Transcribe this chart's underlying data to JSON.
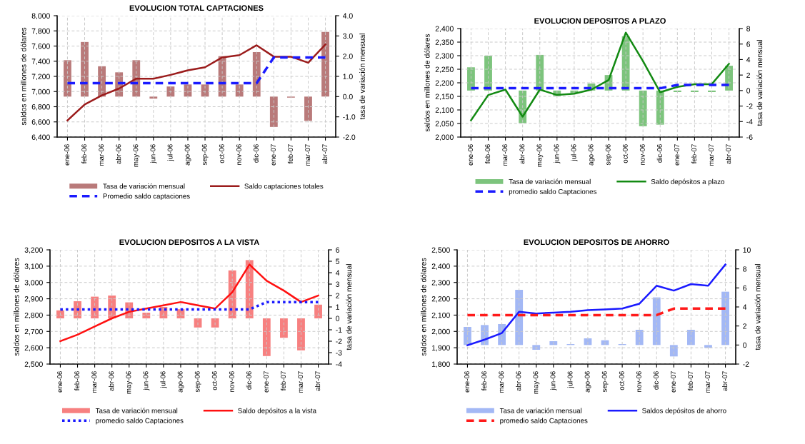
{
  "chart_data": [
    {
      "type": "bar",
      "title": "EVOLUCION TOTAL CAPTACIONES",
      "ylabel": "saldos en millones de dólares",
      "y2label": "tasa de variación mensual",
      "categories": [
        "ene-06",
        "feb-06",
        "mar-06",
        "abr-06",
        "may-06",
        "jun-06",
        "jul-06",
        "ago-06",
        "sep-06",
        "oct-06",
        "nov-06",
        "dic-06",
        "ene-07",
        "feb-07",
        "mar-07",
        "abr-07"
      ],
      "series": [
        {
          "name": "Tasa de variación mensual",
          "axis": "y2",
          "color": "#b97a7a",
          "values": [
            1.8,
            2.7,
            1.5,
            1.2,
            1.8,
            -0.1,
            0.5,
            0.6,
            0.6,
            2.0,
            0.6,
            2.2,
            -1.5,
            -0.05,
            -1.2,
            3.2
          ]
        },
        {
          "name": "Saldo captaciones totales",
          "type": "line",
          "color": "#9b1c1c",
          "line_style": "solid",
          "values": [
            6620,
            6830,
            6950,
            7040,
            7170,
            7170,
            7220,
            7280,
            7320,
            7450,
            7480,
            7610,
            7460,
            7460,
            7380,
            7620
          ]
        },
        {
          "name": "Promedio saldo captaciones",
          "type": "line",
          "color": "#1a1aff",
          "line_style": "dashed",
          "values": [
            7110,
            7110,
            7110,
            7110,
            7110,
            7110,
            7110,
            7110,
            7110,
            7110,
            7110,
            7110,
            7450,
            7450,
            7450,
            7450
          ]
        }
      ],
      "ylim": [
        6400,
        8000
      ],
      "yticks": [
        {
          "value": 6400,
          "label": "6,400"
        },
        {
          "value": 6600,
          "label": "6,600"
        },
        {
          "value": 6800,
          "label": "6,800"
        },
        {
          "value": 7000,
          "label": "7,000"
        },
        {
          "value": 7200,
          "label": "7,200"
        },
        {
          "value": 7400,
          "label": "7,400"
        },
        {
          "value": 7600,
          "label": "7,600"
        },
        {
          "value": 7800,
          "label": "7,800"
        },
        {
          "value": 8000,
          "label": "8,000"
        }
      ],
      "y2lim": [
        -2,
        4
      ],
      "y2ticks": [
        {
          "value": -2,
          "label": "-2.0"
        },
        {
          "value": -1,
          "label": "-1.0"
        },
        {
          "value": 0,
          "label": "0.0"
        },
        {
          "value": 1,
          "label": "1.0"
        },
        {
          "value": 2,
          "label": "2.0"
        },
        {
          "value": 3,
          "label": "3.0"
        },
        {
          "value": 4,
          "label": "4.0"
        }
      ],
      "grid": true,
      "legend": "bottom"
    },
    {
      "type": "bar",
      "title": "EVOLUCION DEPOSITOS A PLAZO",
      "ylabel": "saldos en millones de dólares",
      "y2label": "tasa de variación mensual",
      "categories": [
        "ene-06",
        "feb-06",
        "mar-06",
        "abr-06",
        "may-06",
        "jun-06",
        "jul-06",
        "ago-06",
        "sep-06",
        "oct-06",
        "nov-06",
        "dic-06",
        "ene-07",
        "feb-07",
        "mar-07",
        "abr-07"
      ],
      "series": [
        {
          "name": "Tasa de variación mensual",
          "axis": "y2",
          "color": "#7dc47d",
          "values": [
            3.0,
            4.5,
            null,
            -4.2,
            4.6,
            -0.7,
            -0.3,
            0.9,
            2.0,
            7.0,
            -4.6,
            -4.4,
            -0.2,
            -0.2,
            -0.2,
            3.2
          ]
        },
        {
          "name": "Saldo depósitos a plazo",
          "type": "line",
          "color": "#138a13",
          "line_style": "solid",
          "values": [
            2062,
            2155,
            2175,
            2075,
            2175,
            2155,
            2160,
            2175,
            2210,
            2385,
            2280,
            2165,
            2185,
            2195,
            2195,
            2270
          ]
        },
        {
          "name": "promedio saldo Captaciones",
          "type": "line",
          "color": "#1a1aff",
          "line_style": "dashed",
          "values": [
            2180,
            2180,
            2180,
            2180,
            2180,
            2180,
            2180,
            2180,
            2180,
            2180,
            2180,
            2180,
            2192,
            2192,
            2192,
            2192
          ]
        }
      ],
      "ylim": [
        2000,
        2400
      ],
      "yticks": [
        {
          "value": 2000,
          "label": "2,000"
        },
        {
          "value": 2050,
          "label": "2,050"
        },
        {
          "value": 2100,
          "label": "2,100"
        },
        {
          "value": 2150,
          "label": "2,150"
        },
        {
          "value": 2200,
          "label": "2,200"
        },
        {
          "value": 2250,
          "label": "2,250"
        },
        {
          "value": 2300,
          "label": "2,300"
        },
        {
          "value": 2350,
          "label": "2,350"
        },
        {
          "value": 2400,
          "label": "2,400"
        }
      ],
      "y2lim": [
        -6,
        8
      ],
      "y2ticks": [
        -6,
        -4,
        -2,
        0,
        2,
        4,
        6,
        8
      ],
      "grid": true,
      "legend": "bottom"
    },
    {
      "type": "bar",
      "title": "EVOLUCION DEPOSITOS A LA VISTA",
      "ylabel": "saldos en millones de dólares",
      "y2label": "tasa de variación mensual",
      "categories": [
        "ene-06",
        "feb-06",
        "mar-06",
        "abr-06",
        "may-06",
        "jun-06",
        "jul-06",
        "ago-06",
        "sep-06",
        "oct-06",
        "nov-06",
        "dic-06",
        "ene-07",
        "feb-07",
        "mar-07",
        "abr-07"
      ],
      "series": [
        {
          "name": "Tasa de variación mensual",
          "axis": "y2",
          "color": "#f78080",
          "values": [
            0.7,
            1.5,
            1.9,
            2.0,
            1.4,
            0.5,
            1.0,
            0.8,
            -0.8,
            -0.8,
            4.2,
            5.1,
            -3.3,
            -1.7,
            -2.8,
            1.2
          ]
        },
        {
          "name": "Saldo depósitos a la vista",
          "type": "line",
          "color": "#ff1010",
          "line_style": "solid",
          "values": [
            2640,
            2680,
            2730,
            2780,
            2820,
            2840,
            2860,
            2880,
            2860,
            2840,
            2940,
            3110,
            3010,
            2950,
            2880,
            2920
          ]
        },
        {
          "name": "promedio saldo Captaciones",
          "type": "line",
          "color": "#1a1aff",
          "line_style": "dotted",
          "values": [
            2835,
            2835,
            2835,
            2835,
            2835,
            2835,
            2835,
            2835,
            2835,
            2835,
            2835,
            2835,
            2880,
            2880,
            2880,
            2880
          ]
        }
      ],
      "ylim": [
        2500,
        3200
      ],
      "yticks": [
        {
          "value": 2500,
          "label": "2,500"
        },
        {
          "value": 2600,
          "label": "2,600"
        },
        {
          "value": 2700,
          "label": "2,700"
        },
        {
          "value": 2800,
          "label": "2,800"
        },
        {
          "value": 2900,
          "label": "2,900"
        },
        {
          "value": 3000,
          "label": "3,000"
        },
        {
          "value": 3100,
          "label": "3,100"
        },
        {
          "value": 3200,
          "label": "3,200"
        }
      ],
      "y2lim": [
        -4,
        6
      ],
      "y2ticks": [
        -4,
        -3,
        -2,
        -1,
        0,
        1,
        2,
        3,
        4,
        5,
        6
      ],
      "grid": true,
      "legend": "bottom"
    },
    {
      "type": "bar",
      "title": "EVOLUCION DEPOSITOS DE AHORRO",
      "ylabel": "saldos en millones de dólares",
      "y2label": "tasa de variación mensual",
      "categories": [
        "ene-06",
        "feb-06",
        "mar-06",
        "abr-06",
        "may-06",
        "jun-06",
        "jul-06",
        "ago-06",
        "sep-06",
        "oct-06",
        "nov-06",
        "dic-06",
        "ene-07",
        "feb-07",
        "mar-07",
        "abr-07"
      ],
      "series": [
        {
          "name": "Tasa de variación mensual",
          "axis": "y2",
          "color": "#a3b8f5",
          "values": [
            1.9,
            2.1,
            2.2,
            5.8,
            -0.5,
            0.4,
            0.1,
            0.7,
            0.5,
            0.1,
            1.6,
            5.0,
            -1.2,
            1.6,
            -0.3,
            5.6
          ]
        },
        {
          "name": "Saldos depósitos de ahorro",
          "type": "line",
          "color": "#1a1aff",
          "line_style": "solid",
          "values": [
            1915,
            1950,
            1990,
            2120,
            2110,
            2115,
            2120,
            2130,
            2135,
            2140,
            2170,
            2280,
            2250,
            2290,
            2280,
            2410
          ]
        },
        {
          "name": "promedio saldo Captaciones",
          "type": "line",
          "color": "#ff1a1a",
          "line_style": "dashed",
          "values": [
            2100,
            2100,
            2100,
            2100,
            2100,
            2100,
            2100,
            2100,
            2100,
            2100,
            2100,
            2100,
            2140,
            2140,
            2140,
            2140
          ]
        }
      ],
      "ylim": [
        1800,
        2500
      ],
      "yticks": [
        {
          "value": 1800,
          "label": "1,800"
        },
        {
          "value": 1900,
          "label": "1,900"
        },
        {
          "value": 2000,
          "label": "2,000"
        },
        {
          "value": 2100,
          "label": "2,100"
        },
        {
          "value": 2200,
          "label": "2,200"
        },
        {
          "value": 2300,
          "label": "2,300"
        },
        {
          "value": 2400,
          "label": "2,400"
        },
        {
          "value": 2500,
          "label": "2,500"
        }
      ],
      "y2lim": [
        -2,
        10
      ],
      "y2ticks": [
        -2,
        0,
        2,
        4,
        6,
        8,
        10
      ],
      "grid": true,
      "legend": "bottom"
    }
  ]
}
